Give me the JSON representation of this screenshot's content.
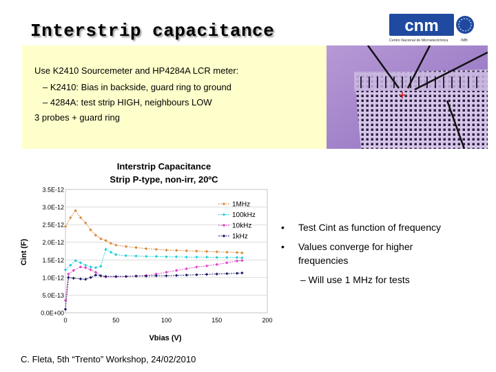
{
  "slide": {
    "title": "Interstrip capacitance",
    "logo_text": "cnm",
    "logo_subtitle": "Centro Nacional de Microelectrónica",
    "logo_right": "IMB",
    "info_lines": [
      "Use K2410 Sourcemeter and HP4284A LCR meter:",
      "– K2410: Bias in backside, guard ring to ground",
      "– 4284A: test strip HIGH, neighbours LOW",
      "3 probes + guard ring"
    ],
    "bullets": [
      "Test Cint as function of frequency",
      "Values converge for higher",
      "frequencies"
    ],
    "bullet_glyph": "•",
    "sub_bullet": "– Will use 1 MHz for tests",
    "footer": "C. Fleta, 5th “Trento” Workshop, 24/02/2010"
  },
  "colors": {
    "info_bg": "#ffffcc",
    "series_1mhz": "#d98a3a",
    "series_100khz": "#22cfd6",
    "series_10khz": "#e040c8",
    "series_1khz": "#1a1a66"
  },
  "chart_data": {
    "type": "line",
    "title": "Interstrip Capacitance",
    "subtitle": "Strip P-type, non-irr, 20ºC",
    "xlabel": "Vbias (V)",
    "ylabel": "Cint (F)",
    "xlim": [
      0,
      200
    ],
    "ylim": [
      0,
      3.5e-12
    ],
    "xticks": [
      0,
      50,
      100,
      150,
      200
    ],
    "xtick_labels": [
      "0",
      "50",
      "100",
      "150",
      "200"
    ],
    "yticks": [
      0,
      5e-13,
      1e-12,
      1.5e-12,
      2e-12,
      2.5e-12,
      3e-12,
      3.5e-12
    ],
    "ytick_labels": [
      "0.0E+00",
      "5.0E-13",
      "1.0E-12",
      "1.5E-12",
      "2.0E-12",
      "2.5E-12",
      "3.0E-12",
      "3.5E-12"
    ],
    "legend_position": "top-right",
    "series": [
      {
        "name": "1MHz",
        "color": "#d98a3a",
        "marker": "diamond",
        "x": [
          0,
          5,
          10,
          15,
          20,
          25,
          30,
          35,
          40,
          45,
          50,
          60,
          70,
          80,
          90,
          100,
          110,
          120,
          130,
          140,
          150,
          160,
          170,
          175
        ],
        "y": [
          2.45e-12,
          2.7e-12,
          2.9e-12,
          2.7e-12,
          2.55e-12,
          2.35e-12,
          2.2e-12,
          2.1e-12,
          2.05e-12,
          1.97e-12,
          1.92e-12,
          1.88e-12,
          1.85e-12,
          1.82e-12,
          1.8e-12,
          1.78e-12,
          1.77e-12,
          1.76e-12,
          1.75e-12,
          1.74e-12,
          1.73e-12,
          1.72e-12,
          1.71e-12,
          1.7e-12
        ]
      },
      {
        "name": "100kHz",
        "color": "#22cfd6",
        "marker": "diamond",
        "x": [
          0,
          5,
          10,
          15,
          20,
          25,
          30,
          35,
          40,
          45,
          50,
          60,
          70,
          80,
          90,
          100,
          110,
          120,
          130,
          140,
          150,
          160,
          170,
          175
        ],
        "y": [
          1.22e-12,
          1.35e-12,
          1.48e-12,
          1.42e-12,
          1.35e-12,
          1.3e-12,
          1.28e-12,
          1.32e-12,
          1.8e-12,
          1.72e-12,
          1.65e-12,
          1.62e-12,
          1.61e-12,
          1.6e-12,
          1.6e-12,
          1.59e-12,
          1.59e-12,
          1.58e-12,
          1.58e-12,
          1.58e-12,
          1.57e-12,
          1.57e-12,
          1.57e-12,
          1.56e-12
        ]
      },
      {
        "name": "10kHz",
        "color": "#e040c8",
        "marker": "diamond",
        "x": [
          0,
          3,
          8,
          15,
          20,
          25,
          30,
          35,
          40,
          50,
          60,
          70,
          80,
          90,
          100,
          110,
          120,
          130,
          140,
          150,
          160,
          170,
          175
        ],
        "y": [
          3.5e-13,
          1.1e-12,
          1.2e-12,
          1.3e-12,
          1.28e-12,
          1.22e-12,
          1.15e-12,
          1.05e-12,
          1.02e-12,
          1.02e-12,
          1.03e-12,
          1.04e-12,
          1.06e-12,
          1.1e-12,
          1.15e-12,
          1.2e-12,
          1.25e-12,
          1.3e-12,
          1.33e-12,
          1.37e-12,
          1.42e-12,
          1.47e-12,
          1.48e-12
        ]
      },
      {
        "name": "1kHz",
        "color": "#1a1a66",
        "marker": "diamond",
        "x": [
          0,
          3,
          8,
          15,
          20,
          25,
          30,
          35,
          40,
          50,
          60,
          70,
          80,
          90,
          100,
          110,
          120,
          130,
          140,
          150,
          160,
          170,
          175
        ],
        "y": [
          1e-13,
          1e-12,
          9.8e-13,
          9.6e-13,
          9.5e-13,
          1e-12,
          1.07e-12,
          1.05e-12,
          1.03e-12,
          1.03e-12,
          1.03e-12,
          1.04e-12,
          1.04e-12,
          1.05e-12,
          1.05e-12,
          1.06e-12,
          1.07e-12,
          1.08e-12,
          1.09e-12,
          1.1e-12,
          1.11e-12,
          1.12e-12,
          1.13e-12
        ]
      }
    ]
  }
}
